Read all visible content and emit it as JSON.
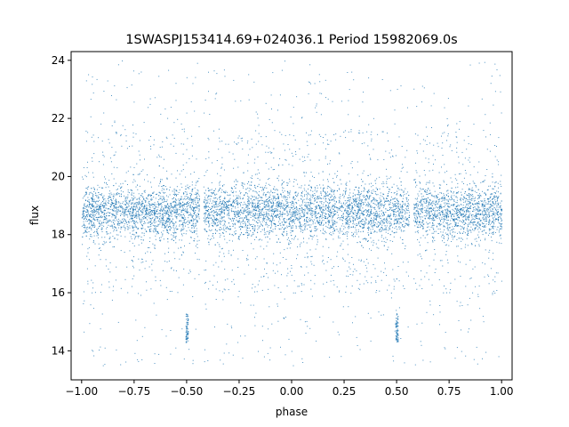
{
  "chart_data": {
    "type": "scatter",
    "title": "1SWASPJ153414.69+024036.1 Period 15982069.0s",
    "xlabel": "phase",
    "ylabel": "flux",
    "xlim": [
      -1.05,
      1.05
    ],
    "ylim": [
      13.0,
      24.3
    ],
    "xticks": [
      -1.0,
      -0.75,
      -0.5,
      -0.25,
      0.0,
      0.25,
      0.5,
      0.75,
      1.0
    ],
    "xtick_labels": [
      "−1.00",
      "−0.75",
      "−0.50",
      "−0.25",
      "0.00",
      "0.25",
      "0.50",
      "0.75",
      "1.00"
    ],
    "yticks": [
      14,
      16,
      18,
      20,
      22,
      24
    ],
    "ytick_labels": [
      "14",
      "16",
      "18",
      "20",
      "22",
      "24"
    ],
    "grid": false,
    "point_color": "#1f77b4",
    "series": [
      {
        "phase_range": [
          -1.0,
          1.0
        ],
        "typical_flux_band": [
          18.0,
          19.6
        ],
        "median_flux": 18.8,
        "max_flux": 24.0,
        "min_flux": 13.5,
        "phase_gaps": [
          [
            -0.44,
            -0.42
          ],
          [
            0.56,
            0.58
          ]
        ],
        "low_flux_clumps": [
          {
            "phase": -0.5,
            "flux_range": [
              14.3,
              15.3
            ]
          },
          {
            "phase": 0.5,
            "flux_range": [
              14.3,
              15.3
            ]
          }
        ]
      }
    ]
  }
}
